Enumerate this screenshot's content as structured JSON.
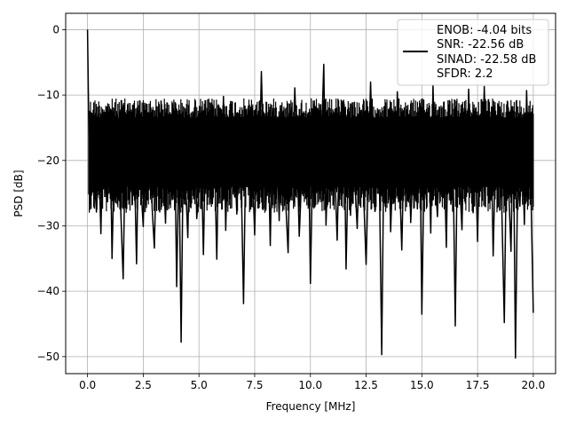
{
  "chart_data": {
    "type": "line",
    "xlabel": "Frequency [MHz]",
    "ylabel": "PSD [dB]",
    "xlim": [
      -0.98,
      21.0
    ],
    "ylim": [
      -52.6,
      2.5
    ],
    "xticks": [
      0.0,
      2.5,
      5.0,
      7.5,
      10.0,
      12.5,
      15.0,
      17.5,
      20.0
    ],
    "xtick_labels": [
      "0.0",
      "2.5",
      "5.0",
      "7.5",
      "10.0",
      "12.5",
      "15.0",
      "17.5",
      "20.0"
    ],
    "yticks": [
      0,
      -10,
      -20,
      -30,
      -40,
      -50
    ],
    "ytick_labels": [
      "0",
      "−10",
      "−20",
      "−30",
      "−40",
      "−50"
    ],
    "grid": true,
    "legend_position": "top-right",
    "legend": [
      "ENOB: -4.04 bits",
      "SNR: -22.56 dB",
      "SINAD: -22.58 dB",
      "SFDR: 2.2"
    ],
    "series": [
      {
        "color": "#000000",
        "x_range": [
          0,
          20
        ],
        "values": [
          0.0,
          -25.4,
          -21.0,
          -22.3,
          -27.9,
          -18.7,
          -31.2,
          -14.4,
          -20.8,
          -26.3,
          -12.1,
          -35.0,
          -19.4,
          -23.7,
          -15.6,
          -28.5,
          -38.1,
          -17.0,
          -22.9,
          -11.3,
          -26.8,
          -19.9,
          -35.8,
          -14.7,
          -24.2,
          -30.1,
          -16.5,
          -21.6,
          -12.8,
          -27.3,
          -33.4,
          -18.2,
          -24.8,
          -10.9,
          -20.4,
          -29.6,
          -15.1,
          -22.1,
          -26.0,
          -13.7,
          -39.3,
          -19.0,
          -47.8,
          -17.5,
          -23.3,
          -31.8,
          -14.1,
          -20.6,
          -11.9,
          -28.9,
          -24.5,
          -18.4,
          -34.4,
          -16.2,
          -21.8,
          -12.4,
          -26.6,
          -19.7,
          -35.1,
          -15.4,
          -22.6,
          -10.2,
          -30.7,
          -17.8,
          -24.0,
          -13.2,
          -20.1,
          -28.2,
          -15.9,
          -23.9,
          -41.9,
          -18.9,
          -12.0,
          -26.1,
          -21.3,
          -31.4,
          -14.9,
          -22.8,
          -6.4,
          -19.6,
          -27.6,
          -16.8,
          -33.0,
          -13.5,
          -24.4,
          -18.0,
          -29.2,
          -11.6,
          -21.1,
          -26.9,
          -34.1,
          -15.2,
          -22.4,
          -8.9,
          -18.6,
          -31.6,
          -23.1,
          -17.2,
          -25.7,
          -12.7,
          -38.8,
          -20.3,
          -27.1,
          -14.3,
          -22.0,
          -16.4,
          -5.3,
          -29.9,
          -19.2,
          -24.7,
          -13.0,
          -21.9,
          -32.2,
          -17.6,
          -25.3,
          -11.1,
          -36.6,
          -20.0,
          -28.4,
          -15.7,
          -23.5,
          -30.4,
          -18.3,
          -12.5,
          -26.4,
          -35.9,
          -21.4,
          -8.0,
          -19.8,
          -27.8,
          -16.1,
          -24.1,
          -49.7,
          -17.3,
          -23.2,
          -13.8,
          -30.9,
          -20.7,
          -26.2,
          -9.5,
          -22.5,
          -33.7,
          -18.1,
          -25.0,
          -14.0,
          -29.5,
          -21.2,
          -17.9,
          -27.4,
          -12.2,
          -43.5,
          -20.9,
          -25.9,
          -15.8,
          -31.1,
          -8.4,
          -22.7,
          -28.6,
          -17.4,
          -24.3,
          -19.3,
          -33.3,
          -11.5,
          -26.7,
          -20.2,
          -45.3,
          -16.9,
          -23.4,
          -30.6,
          -14.6,
          -25.5,
          -9.1,
          -21.7,
          -28.0,
          -18.5,
          -32.4,
          -15.0,
          -24.9,
          -8.7,
          -20.5,
          -26.5,
          -13.9,
          -34.6,
          -19.1,
          -23.8,
          -11.8,
          -29.3,
          -44.8,
          -17.1,
          -24.6,
          -33.9,
          -12.9,
          -50.2,
          -22.2,
          -27.0,
          -16.6,
          -29.8,
          -9.3,
          -21.5,
          -25.6,
          -43.3
        ]
      }
    ]
  }
}
